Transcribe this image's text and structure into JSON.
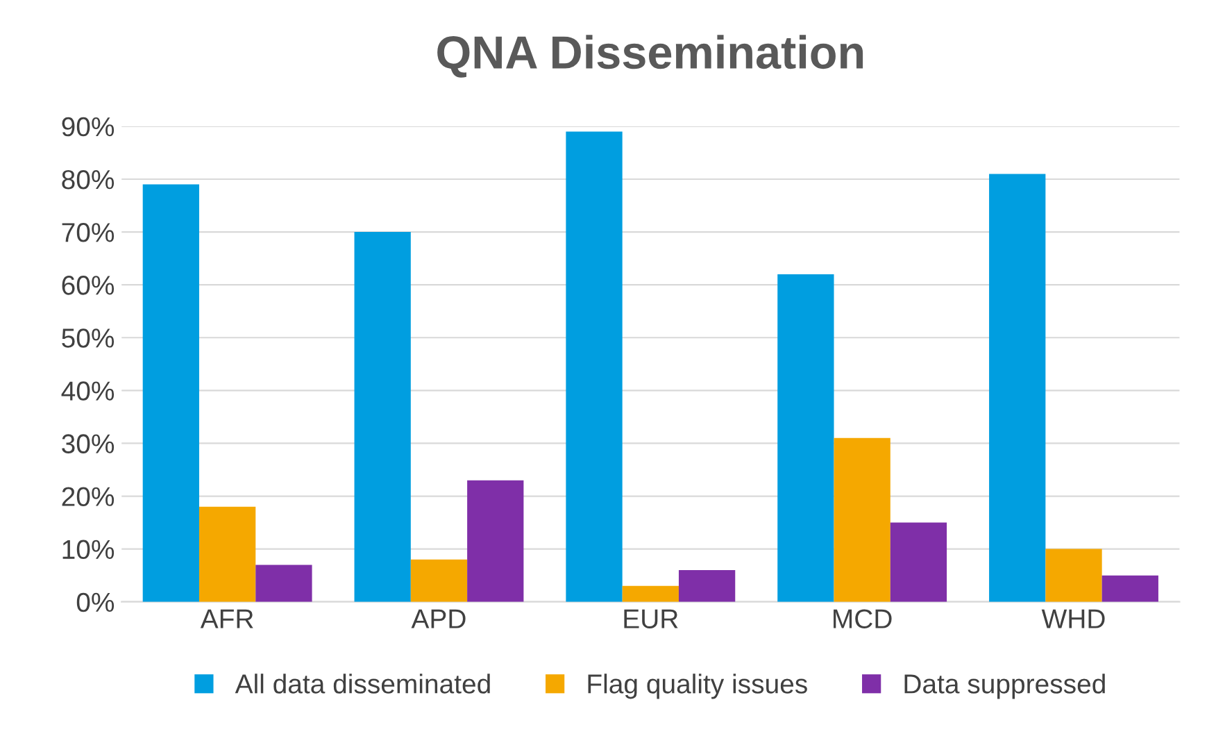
{
  "chart_data": {
    "type": "bar",
    "title": "QNA Dissemination",
    "categories": [
      "AFR",
      "APD",
      "EUR",
      "MCD",
      "WHD"
    ],
    "series": [
      {
        "name": "All data disseminated",
        "color": "#009ee0",
        "values": [
          79,
          70,
          89,
          62,
          81
        ]
      },
      {
        "name": "Flag quality issues",
        "color": "#f5a800",
        "values": [
          18,
          8,
          3,
          31,
          10
        ]
      },
      {
        "name": "Data suppressed",
        "color": "#7f2fa8",
        "values": [
          7,
          23,
          6,
          15,
          5
        ]
      }
    ],
    "ylim": [
      0,
      90
    ],
    "yticks": [
      {
        "value": 0,
        "label": "0%"
      },
      {
        "value": 10,
        "label": "10%"
      },
      {
        "value": 20,
        "label": "20%"
      },
      {
        "value": 30,
        "label": "30%"
      },
      {
        "value": 40,
        "label": "40%"
      },
      {
        "value": 50,
        "label": "50%"
      },
      {
        "value": 60,
        "label": "60%"
      },
      {
        "value": 70,
        "label": "70%"
      },
      {
        "value": 80,
        "label": "80%"
      },
      {
        "value": 90,
        "label": "90%"
      }
    ],
    "grid": "y",
    "legend": "bottom"
  }
}
